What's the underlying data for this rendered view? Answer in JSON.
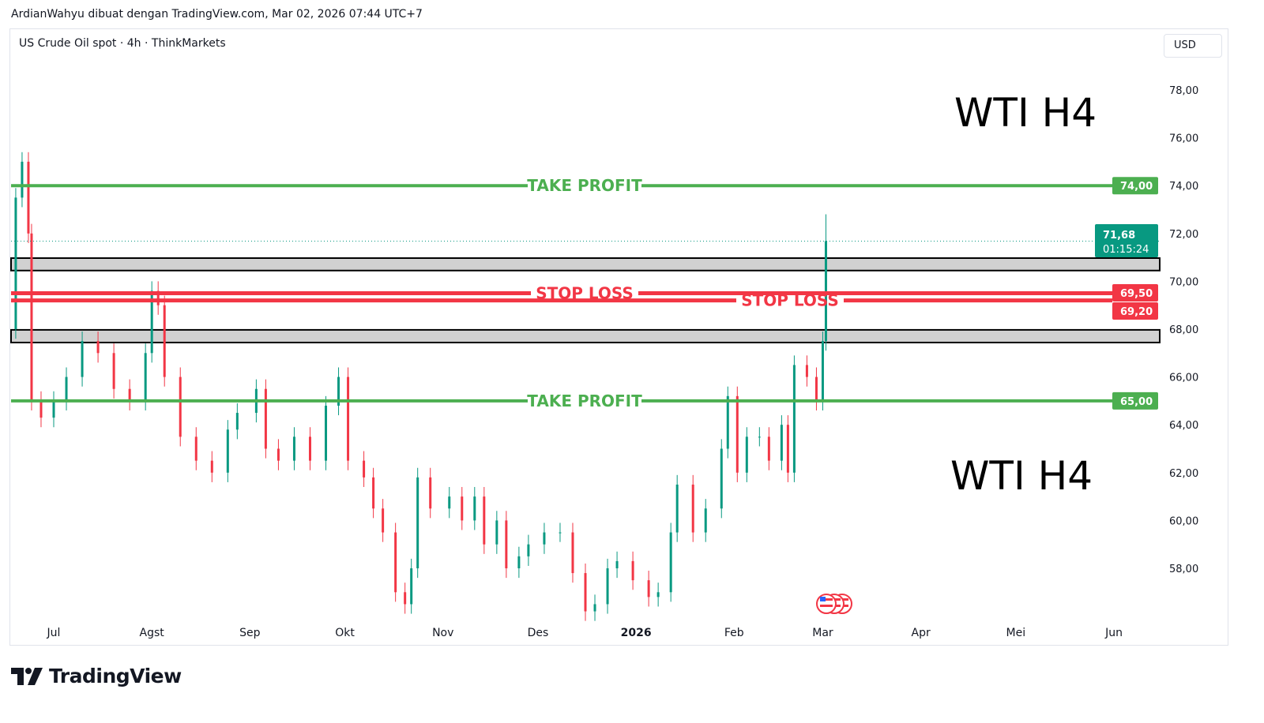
{
  "header": {
    "credit": "ArdianWahyu dibuat dengan TradingView.com, Mar 02, 2026 07:44 UTC+7",
    "symbol": "US Crude Oil spot · 4h · ThinkMarkets",
    "currency": "USD"
  },
  "branding": {
    "logo_text": "TradingView"
  },
  "colors": {
    "green": "#4caf50",
    "red": "#f23645",
    "up": "#089981",
    "down": "#f23645",
    "zone": "#d1d1d1",
    "last_price": "#089981"
  },
  "chart_data": {
    "type": "candlestick",
    "ylim": [
      56,
      80
    ],
    "y_ticks": [
      "78,00",
      "76,00",
      "74,00",
      "72,00",
      "70,00",
      "68,00",
      "66,00",
      "64,00",
      "62,00",
      "60,00",
      "58,00"
    ],
    "y_tick_values": [
      78,
      76,
      74,
      72,
      70,
      68,
      66,
      64,
      62,
      60,
      58
    ],
    "x_ticks": [
      {
        "label": "Jul",
        "date": "2025-07-01"
      },
      {
        "label": "Agst",
        "date": "2025-08-01"
      },
      {
        "label": "Sep",
        "date": "2025-09-01"
      },
      {
        "label": "Okt",
        "date": "2025-10-01"
      },
      {
        "label": "Nov",
        "date": "2025-11-01"
      },
      {
        "label": "Des",
        "date": "2025-12-01"
      },
      {
        "label": "2026",
        "date": "2026-01-01",
        "bold": true
      },
      {
        "label": "Feb",
        "date": "2026-02-01"
      },
      {
        "label": "Mar",
        "date": "2026-03-01"
      },
      {
        "label": "Apr",
        "date": "2026-04-01"
      },
      {
        "label": "Mei",
        "date": "2026-05-01"
      },
      {
        "label": "Jun",
        "date": "2026-06-01"
      }
    ],
    "closes": [
      [
        "2025-06-17",
        68
      ],
      [
        "2025-06-19",
        73.5
      ],
      [
        "2025-06-21",
        75
      ],
      [
        "2025-06-23",
        72
      ],
      [
        "2025-06-24",
        65
      ],
      [
        "2025-06-27",
        64.3
      ],
      [
        "2025-07-01",
        65
      ],
      [
        "2025-07-05",
        66
      ],
      [
        "2025-07-10",
        67.5
      ],
      [
        "2025-07-15",
        67
      ],
      [
        "2025-07-20",
        65.5
      ],
      [
        "2025-07-25",
        65
      ],
      [
        "2025-07-30",
        67
      ],
      [
        "2025-08-01",
        69.6
      ],
      [
        "2025-08-03",
        69
      ],
      [
        "2025-08-05",
        66
      ],
      [
        "2025-08-10",
        63.5
      ],
      [
        "2025-08-15",
        62.5
      ],
      [
        "2025-08-20",
        62
      ],
      [
        "2025-08-25",
        63.8
      ],
      [
        "2025-08-28",
        64.5
      ],
      [
        "2025-09-03",
        65.5
      ],
      [
        "2025-09-06",
        63
      ],
      [
        "2025-09-10",
        62.5
      ],
      [
        "2025-09-15",
        63.5
      ],
      [
        "2025-09-20",
        62.5
      ],
      [
        "2025-09-25",
        64.8
      ],
      [
        "2025-09-29",
        66
      ],
      [
        "2025-10-02",
        62.5
      ],
      [
        "2025-10-07",
        61.8
      ],
      [
        "2025-10-10",
        60.5
      ],
      [
        "2025-10-13",
        59.5
      ],
      [
        "2025-10-17",
        57
      ],
      [
        "2025-10-20",
        56.5
      ],
      [
        "2025-10-22",
        58
      ],
      [
        "2025-10-24",
        61.8
      ],
      [
        "2025-10-28",
        60.5
      ],
      [
        "2025-11-03",
        61
      ],
      [
        "2025-11-07",
        60
      ],
      [
        "2025-11-11",
        61
      ],
      [
        "2025-11-14",
        59
      ],
      [
        "2025-11-18",
        60
      ],
      [
        "2025-11-21",
        58
      ],
      [
        "2025-11-25",
        58.5
      ],
      [
        "2025-11-28",
        59
      ],
      [
        "2025-12-03",
        59.5
      ],
      [
        "2025-12-08",
        59.5
      ],
      [
        "2025-12-12",
        57.8
      ],
      [
        "2025-12-16",
        56.2
      ],
      [
        "2025-12-19",
        56.5
      ],
      [
        "2025-12-23",
        58
      ],
      [
        "2025-12-26",
        58.3
      ],
      [
        "2025-12-31",
        57.5
      ],
      [
        "2026-01-05",
        56.8
      ],
      [
        "2026-01-08",
        57
      ],
      [
        "2026-01-12",
        59.5
      ],
      [
        "2026-01-14",
        61.5
      ],
      [
        "2026-01-19",
        59.5
      ],
      [
        "2026-01-23",
        60.5
      ],
      [
        "2026-01-28",
        63
      ],
      [
        "2026-01-30",
        65.2
      ],
      [
        "2026-02-02",
        62
      ],
      [
        "2026-02-05",
        63.5
      ],
      [
        "2026-02-09",
        63.5
      ],
      [
        "2026-02-12",
        62.5
      ],
      [
        "2026-02-16",
        64
      ],
      [
        "2026-02-18",
        62
      ],
      [
        "2026-02-20",
        66.5
      ],
      [
        "2026-02-24",
        66
      ],
      [
        "2026-02-27",
        65
      ],
      [
        "2026-03-01",
        67.5
      ],
      [
        "2026-03-02",
        71.68
      ]
    ],
    "last_price": {
      "value": "71,68",
      "countdown": "01:15:24",
      "price": 71.68
    },
    "levels": [
      {
        "price": 74,
        "label": "TAKE PROFIT",
        "tag": "74,00",
        "color": "#4caf50"
      },
      {
        "price": 69.5,
        "label": "STOP LOSS",
        "tag": "69,50",
        "color": "#f23645"
      },
      {
        "price": 69.2,
        "label": "STOP LOSS",
        "tag": "69,20",
        "color": "#f23645"
      },
      {
        "price": 65,
        "label": "TAKE PROFIT",
        "tag": "65,00",
        "color": "#4caf50"
      }
    ],
    "zones": [
      [
        70.45,
        70.97
      ],
      [
        67.44,
        67.97
      ]
    ],
    "annotations": [
      "WTI H4",
      "WTI H4"
    ]
  }
}
